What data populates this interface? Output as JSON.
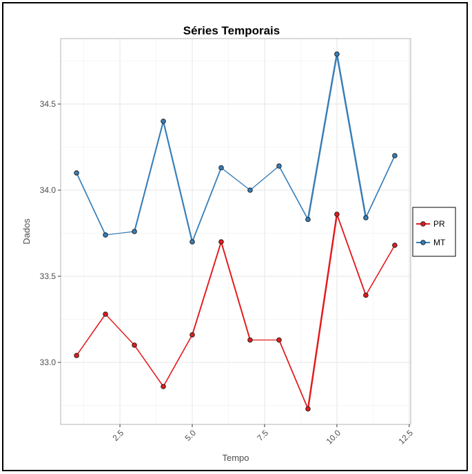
{
  "chart_data": {
    "type": "line",
    "title": "Séries Temporais",
    "xlabel": "Tempo",
    "ylabel": "Dados",
    "xlim": [
      0.45,
      12.55
    ],
    "ylim": [
      32.64,
      34.88
    ],
    "x_ticks": [
      2.5,
      5.0,
      7.5,
      10.0,
      12.5
    ],
    "x_tick_labels": [
      "2.5",
      "5.0",
      "7.5",
      "10.0",
      "12.5"
    ],
    "y_ticks": [
      33.0,
      33.5,
      34.0,
      34.5
    ],
    "y_tick_labels": [
      "33.0",
      "33.5",
      "34.0",
      "34.5"
    ],
    "grid": true,
    "legend_position": "right",
    "x": [
      1,
      2,
      3,
      4,
      5,
      6,
      7,
      8,
      9,
      10,
      11,
      12
    ],
    "series": [
      {
        "name": "PR",
        "color": "#e41a1c",
        "values": [
          33.04,
          33.28,
          33.1,
          32.86,
          33.16,
          33.7,
          33.13,
          33.13,
          32.73,
          33.86,
          33.39,
          33.68
        ]
      },
      {
        "name": "MT",
        "color": "#377eb8",
        "values": [
          34.1,
          33.74,
          33.76,
          34.4,
          33.7,
          34.13,
          34.0,
          34.14,
          33.83,
          34.79,
          33.84,
          34.2
        ]
      }
    ]
  }
}
